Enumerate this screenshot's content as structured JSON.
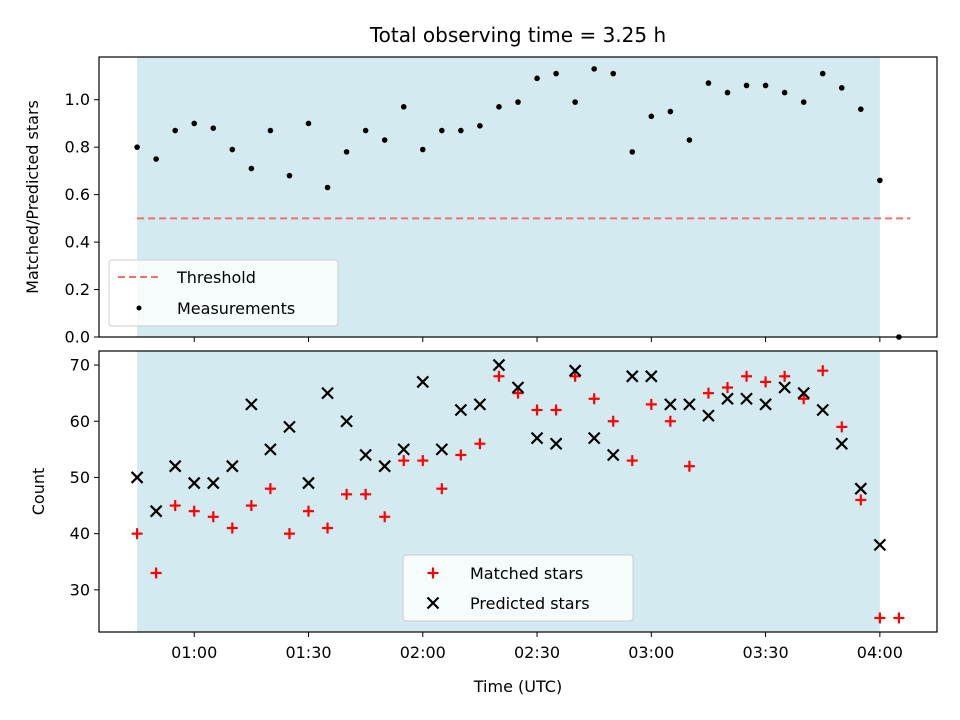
{
  "chart_data": [
    {
      "type": "scatter",
      "title": "Total observing time = 3.25 h",
      "ylabel": "Matched/Predicted stars",
      "ylim": [
        0,
        1.18
      ],
      "yticks": [
        0.0,
        0.2,
        0.4,
        0.6,
        0.8,
        1.0
      ],
      "yticks_labels": [
        "0.0",
        "0.2",
        "0.4",
        "0.6",
        "0.8",
        "1.0"
      ],
      "shaded_span_minutes": [
        45,
        240
      ],
      "threshold": {
        "name": "Threshold",
        "value": 0.5,
        "x_range_minutes": [
          45,
          248
        ],
        "color": "#f07070"
      },
      "series": [
        {
          "name": "Measurements",
          "color": "#000000",
          "x_minutes": [
            45,
            50,
            55,
            60,
            65,
            70,
            75,
            80,
            85,
            90,
            95,
            100,
            105,
            110,
            115,
            120,
            125,
            130,
            135,
            140,
            145,
            150,
            155,
            160,
            165,
            170,
            175,
            180,
            185,
            190,
            195,
            200,
            205,
            210,
            215,
            220,
            225,
            230,
            235,
            240,
            245
          ],
          "values": [
            0.8,
            0.75,
            0.87,
            0.9,
            0.88,
            0.79,
            0.71,
            0.87,
            0.68,
            0.9,
            0.63,
            0.78,
            0.87,
            0.83,
            0.97,
            0.79,
            0.87,
            0.87,
            0.89,
            0.97,
            0.99,
            1.09,
            1.11,
            0.99,
            1.13,
            1.11,
            0.78,
            0.93,
            0.95,
            0.83,
            1.07,
            1.03,
            1.06,
            1.06,
            1.03,
            0.99,
            1.11,
            1.05,
            0.96,
            0.66,
            0.0
          ]
        }
      ],
      "legend": {
        "position": "lower-left",
        "entries": [
          "Threshold",
          "Measurements"
        ]
      }
    },
    {
      "type": "scatter",
      "xlabel": "Time (UTC)",
      "ylabel": "Count",
      "ylim": [
        22.5,
        72.5
      ],
      "yticks": [
        30,
        40,
        50,
        60,
        70
      ],
      "yticks_labels": [
        "30",
        "40",
        "50",
        "60",
        "70"
      ],
      "xlim_minutes": [
        35,
        255
      ],
      "xticks_minutes": [
        60,
        90,
        120,
        150,
        180,
        210,
        240
      ],
      "xticks_labels": [
        "01:00",
        "01:30",
        "02:00",
        "02:30",
        "03:00",
        "03:30",
        "04:00"
      ],
      "shaded_span_minutes": [
        45,
        240
      ],
      "series": [
        {
          "name": "Matched stars",
          "marker": "plus",
          "color": "#ff0000",
          "x_minutes": [
            45,
            50,
            55,
            60,
            65,
            70,
            75,
            80,
            85,
            90,
            95,
            100,
            105,
            110,
            115,
            120,
            125,
            130,
            135,
            140,
            145,
            150,
            155,
            160,
            165,
            170,
            175,
            180,
            185,
            190,
            195,
            200,
            205,
            210,
            215,
            220,
            225,
            230,
            235,
            240,
            245
          ],
          "values": [
            40,
            33,
            45,
            44,
            43,
            41,
            45,
            48,
            40,
            44,
            41,
            47,
            47,
            43,
            53,
            53,
            48,
            54,
            56,
            68,
            65,
            62,
            62,
            68,
            64,
            60,
            53,
            63,
            60,
            52,
            65,
            66,
            68,
            67,
            68,
            64,
            69,
            59,
            46,
            25,
            25
          ]
        },
        {
          "name": "Predicted stars",
          "marker": "x",
          "color": "#000000",
          "x_minutes": [
            45,
            50,
            55,
            60,
            65,
            70,
            75,
            80,
            85,
            90,
            95,
            100,
            105,
            110,
            115,
            120,
            125,
            130,
            135,
            140,
            145,
            150,
            155,
            160,
            165,
            170,
            175,
            180,
            185,
            190,
            195,
            200,
            205,
            210,
            215,
            220,
            225,
            230,
            235,
            240
          ],
          "values": [
            50,
            44,
            52,
            49,
            49,
            52,
            63,
            55,
            59,
            49,
            65,
            60,
            54,
            52,
            55,
            67,
            55,
            62,
            63,
            70,
            66,
            57,
            56,
            69,
            57,
            54,
            68,
            68,
            63,
            63,
            61,
            64,
            64,
            63,
            66,
            65,
            62,
            56,
            48,
            38
          ]
        }
      ],
      "legend": {
        "position": "lower-center",
        "entries": [
          "Matched stars",
          "Predicted stars"
        ]
      }
    }
  ]
}
